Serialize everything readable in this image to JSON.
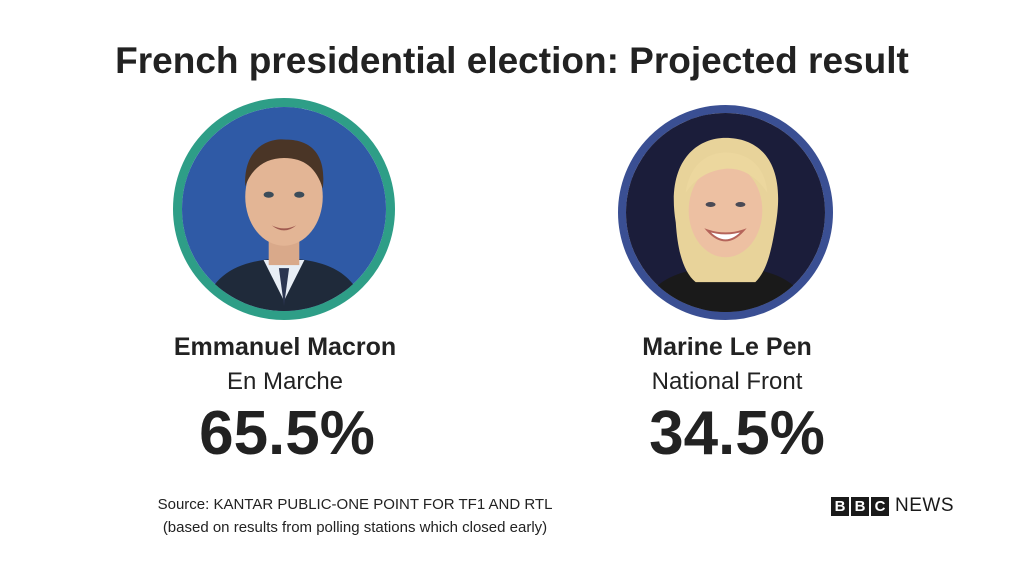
{
  "title": "French presidential election: Projected result",
  "candidates": [
    {
      "name": "Emmanuel Macron",
      "party": "En Marche",
      "percent_label": "65.5%",
      "percent": 65.5,
      "ring_color": "#2e9e87"
    },
    {
      "name": "Marine Le Pen",
      "party": "National Front",
      "percent_label": "34.5%",
      "percent": 34.5,
      "ring_color": "#3a4f93"
    }
  ],
  "source": {
    "line1": "Source: KANTAR PUBLIC-ONE POINT FOR TF1 AND RTL",
    "line2": "(based on results from polling stations which closed early)"
  },
  "logo": {
    "letters": [
      "B",
      "B",
      "C"
    ],
    "word": "NEWS"
  }
}
